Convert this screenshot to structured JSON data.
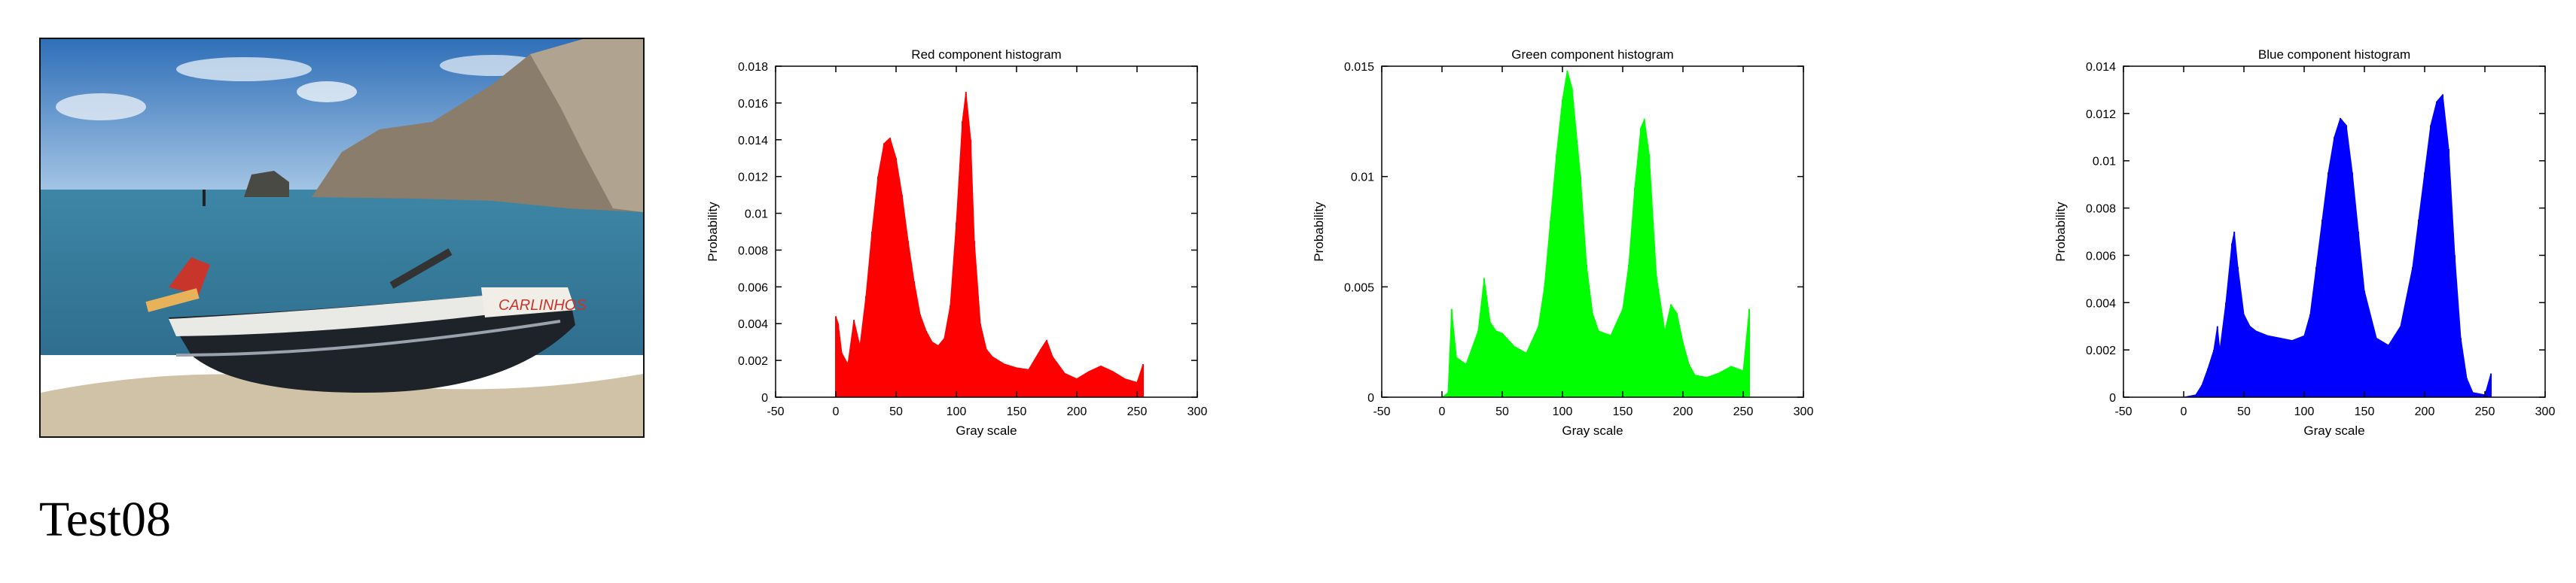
{
  "caption": "Test08",
  "photo": {
    "boat_name": "CARLINHOS",
    "colors": {
      "sky_top": "#2f6fb8",
      "sky_bottom": "#a9c8e6",
      "sea": "#2f6e8e",
      "sand": "#cfc2a6",
      "cliff": "#8a7d6b",
      "hull": "#1e2229",
      "hull_stripe": "#e9e9e6",
      "accent": "#c8352b"
    }
  },
  "chart_data": [
    {
      "type": "area",
      "title": "Red component histogram",
      "xlabel": "Gray scale",
      "ylabel": "Probability",
      "xlim": [
        -50,
        300
      ],
      "ylim": [
        0,
        0.018
      ],
      "xticks": [
        -50,
        0,
        50,
        100,
        150,
        200,
        250,
        300
      ],
      "yticks": [
        "0",
        "0.002",
        "0.004",
        "0.006",
        "0.008",
        "0.01",
        "0.012",
        "0.014",
        "0.016",
        "0.018"
      ],
      "color": "#ff0000",
      "x": [
        0,
        2,
        5,
        10,
        15,
        20,
        25,
        30,
        35,
        40,
        45,
        50,
        55,
        60,
        65,
        70,
        75,
        80,
        85,
        90,
        95,
        100,
        105,
        108,
        112,
        115,
        120,
        125,
        130,
        140,
        150,
        160,
        170,
        175,
        180,
        190,
        200,
        210,
        220,
        230,
        240,
        250,
        255
      ],
      "values": [
        0.0044,
        0.004,
        0.0024,
        0.0018,
        0.0042,
        0.0028,
        0.0055,
        0.009,
        0.012,
        0.0138,
        0.0141,
        0.013,
        0.011,
        0.0085,
        0.0063,
        0.0045,
        0.0036,
        0.003,
        0.0028,
        0.0032,
        0.005,
        0.0095,
        0.015,
        0.0166,
        0.014,
        0.0085,
        0.004,
        0.0026,
        0.0022,
        0.0018,
        0.0016,
        0.0015,
        0.0026,
        0.0031,
        0.0022,
        0.0013,
        0.001,
        0.0014,
        0.0017,
        0.0014,
        0.001,
        0.0008,
        0.0018
      ]
    },
    {
      "type": "area",
      "title": "Green component histogram",
      "xlabel": "Gray scale",
      "ylabel": "Probability",
      "xlim": [
        -50,
        300
      ],
      "ylim": [
        0,
        0.015
      ],
      "xticks": [
        -50,
        0,
        50,
        100,
        150,
        200,
        250,
        300
      ],
      "yticks": [
        "0",
        "0.005",
        "0.01",
        "0.015"
      ],
      "color": "#00ff00",
      "x": [
        0,
        5,
        8,
        12,
        20,
        30,
        35,
        40,
        45,
        50,
        60,
        70,
        80,
        85,
        90,
        95,
        100,
        104,
        108,
        115,
        120,
        125,
        130,
        140,
        150,
        155,
        160,
        165,
        168,
        172,
        178,
        185,
        190,
        195,
        200,
        205,
        210,
        220,
        230,
        240,
        250,
        255
      ],
      "values": [
        0.0,
        0.0002,
        0.004,
        0.0018,
        0.0015,
        0.003,
        0.0054,
        0.0034,
        0.003,
        0.0029,
        0.0023,
        0.002,
        0.0032,
        0.005,
        0.008,
        0.011,
        0.0135,
        0.0148,
        0.014,
        0.01,
        0.006,
        0.0038,
        0.003,
        0.0028,
        0.004,
        0.006,
        0.0095,
        0.0122,
        0.0126,
        0.011,
        0.0055,
        0.003,
        0.0042,
        0.0038,
        0.0025,
        0.0015,
        0.001,
        0.0009,
        0.0011,
        0.0014,
        0.0012,
        0.004
      ]
    },
    {
      "type": "area",
      "title": "Blue component histogram",
      "xlabel": "Gray scale",
      "ylabel": "Probability",
      "xlim": [
        -50,
        300
      ],
      "ylim": [
        0,
        0.014
      ],
      "xticks": [
        -50,
        0,
        50,
        100,
        150,
        200,
        250,
        300
      ],
      "yticks": [
        "0",
        "0.002",
        "0.004",
        "0.006",
        "0.008",
        "0.01",
        "0.012",
        "0.014"
      ],
      "color": "#0000ff",
      "x": [
        0,
        10,
        15,
        20,
        25,
        28,
        30,
        35,
        40,
        42,
        45,
        50,
        55,
        60,
        70,
        80,
        90,
        100,
        105,
        110,
        115,
        120,
        125,
        130,
        135,
        140,
        145,
        150,
        160,
        170,
        180,
        190,
        195,
        200,
        205,
        210,
        215,
        220,
        225,
        230,
        235,
        240,
        250,
        255
      ],
      "values": [
        0.0,
        0.0001,
        0.0005,
        0.0012,
        0.002,
        0.003,
        0.002,
        0.004,
        0.0065,
        0.007,
        0.0055,
        0.0035,
        0.003,
        0.0028,
        0.0026,
        0.0025,
        0.0024,
        0.0026,
        0.0035,
        0.0055,
        0.0075,
        0.0095,
        0.011,
        0.0118,
        0.0115,
        0.0095,
        0.007,
        0.0045,
        0.0025,
        0.0022,
        0.003,
        0.0055,
        0.0075,
        0.0095,
        0.0115,
        0.0125,
        0.0128,
        0.0105,
        0.006,
        0.0025,
        0.0008,
        0.0002,
        0.0001,
        0.001
      ]
    }
  ]
}
